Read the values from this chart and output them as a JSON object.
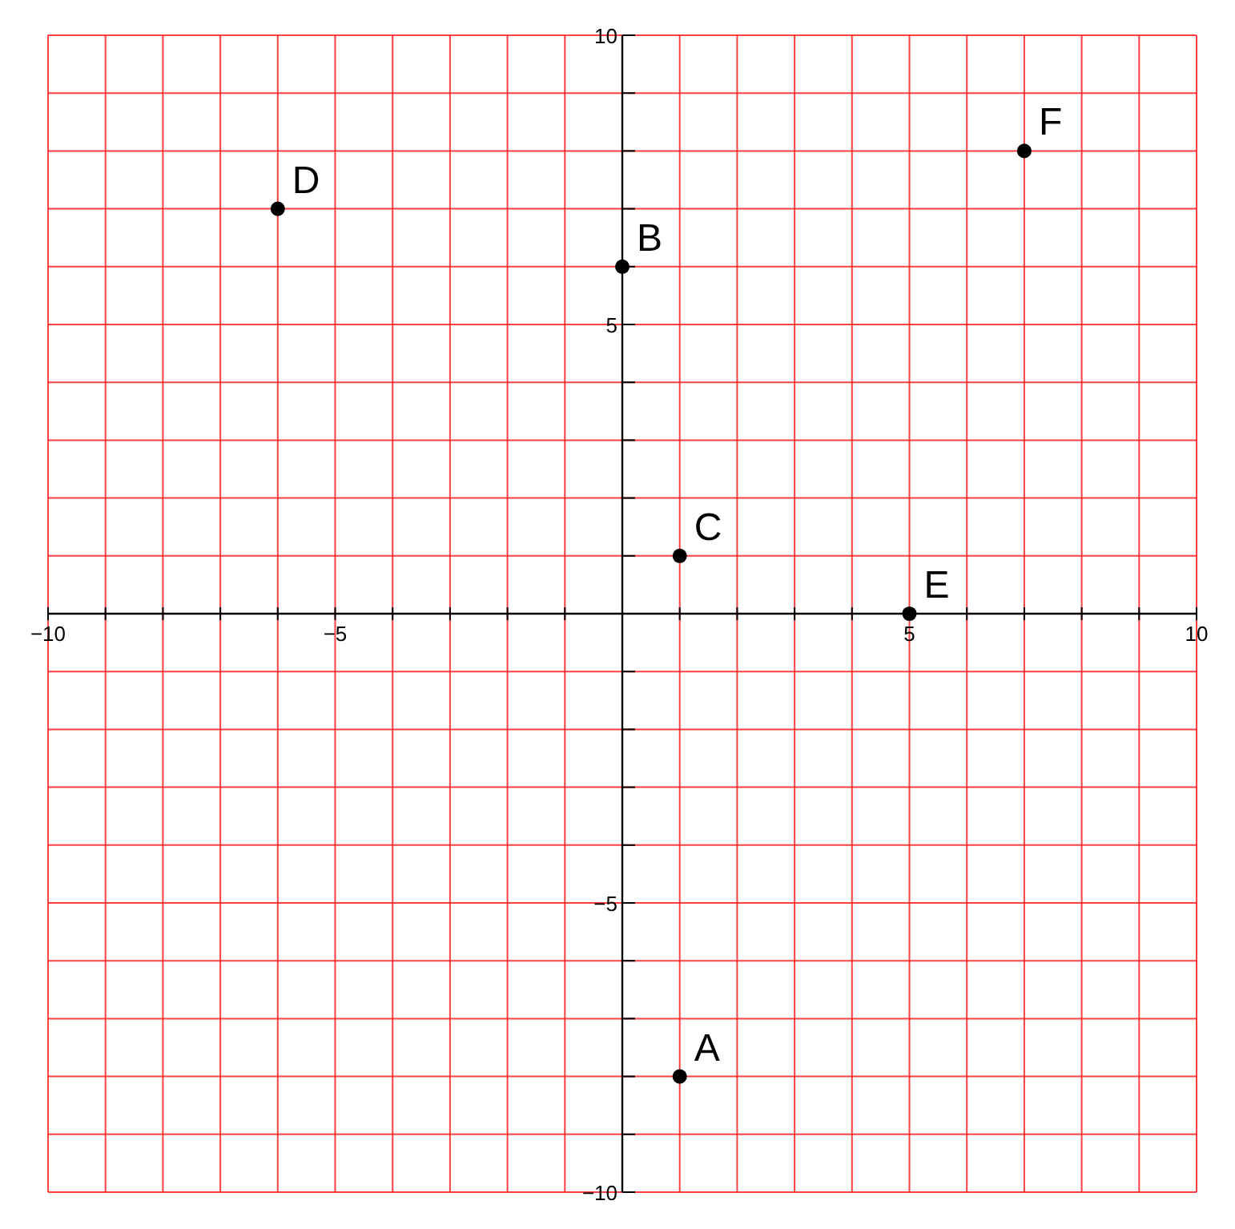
{
  "chart_data": {
    "type": "scatter",
    "x": [
      1,
      0,
      1,
      -6,
      5,
      7
    ],
    "values": [
      -8,
      6,
      1,
      7,
      0,
      8
    ],
    "value_labels": [
      "A",
      "B",
      "C",
      "D",
      "E",
      "F"
    ],
    "color": "#000000",
    "marker": "circle",
    "xlim": [
      -10,
      10
    ],
    "ylim": [
      -10,
      10
    ],
    "xticks": [
      {
        "value": -10,
        "label": "−10"
      },
      {
        "value": -9,
        "label": null
      },
      {
        "value": -8,
        "label": null
      },
      {
        "value": -7,
        "label": null
      },
      {
        "value": -6,
        "label": null
      },
      {
        "value": -5,
        "label": "−5"
      },
      {
        "value": -4,
        "label": null
      },
      {
        "value": -3,
        "label": null
      },
      {
        "value": -2,
        "label": null
      },
      {
        "value": -1,
        "label": null
      },
      {
        "value": 0,
        "label": null
      },
      {
        "value": 1,
        "label": null
      },
      {
        "value": 2,
        "label": null
      },
      {
        "value": 3,
        "label": null
      },
      {
        "value": 4,
        "label": null
      },
      5,
      {
        "value": 6,
        "label": null
      },
      {
        "value": 7,
        "label": null
      },
      {
        "value": 8,
        "label": null
      },
      {
        "value": 9,
        "label": null
      },
      10
    ],
    "yticks": [
      {
        "value": -10,
        "label": "−10"
      },
      {
        "value": -9,
        "label": null
      },
      {
        "value": -8,
        "label": null
      },
      {
        "value": -7,
        "label": null
      },
      {
        "value": -6,
        "label": null
      },
      {
        "value": -5,
        "label": "−5"
      },
      {
        "value": -4,
        "label": null
      },
      {
        "value": -3,
        "label": null
      },
      {
        "value": -2,
        "label": null
      },
      {
        "value": -1,
        "label": null
      },
      {
        "value": 0,
        "label": null
      },
      {
        "value": 1,
        "label": null
      },
      {
        "value": 2,
        "label": null
      },
      {
        "value": 3,
        "label": null
      },
      {
        "value": 4,
        "label": null
      },
      5,
      {
        "value": 6,
        "label": null
      },
      {
        "value": 7,
        "label": null
      },
      {
        "value": 8,
        "label": null
      },
      {
        "value": 9,
        "label": null
      },
      10
    ],
    "grid": true
  }
}
